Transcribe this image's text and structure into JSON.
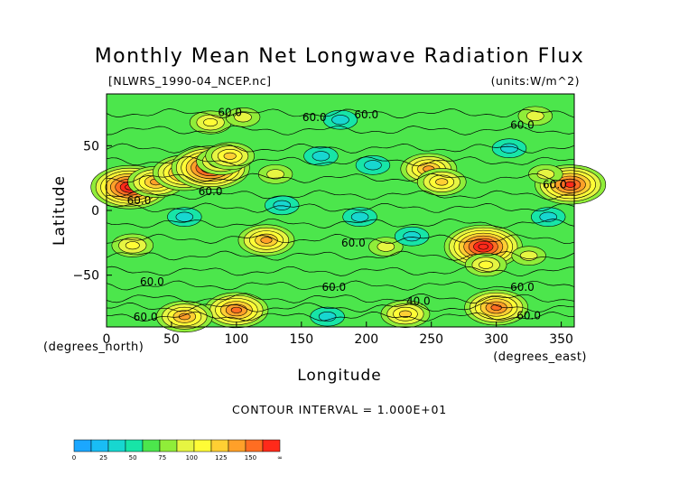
{
  "chart_data": {
    "type": "heatmap",
    "title": "Monthly Mean Net Longwave Radiation Flux",
    "source_file": "[NLWRS_1990-04_NCEP.nc]",
    "units_label": "(units:W/m^2)",
    "xlabel": "Longitude",
    "ylabel": "Latitude",
    "x_unit_label": "(degrees_east)",
    "y_unit_label": "(degrees_north)",
    "xlim": [
      0,
      360
    ],
    "ylim": [
      -90,
      90
    ],
    "x_ticks": [
      0,
      50,
      100,
      150,
      200,
      250,
      300,
      350
    ],
    "y_ticks": [
      50,
      0,
      -50
    ],
    "x_tick_labels": [
      "0",
      "50",
      "100",
      "150",
      "200",
      "250",
      "300",
      "350"
    ],
    "y_tick_labels": [
      "50",
      "0",
      "−50"
    ],
    "contour_interval_text": "CONTOUR INTERVAL = 1.000E+01",
    "contour_labels": [
      "60.0",
      "60.0",
      "60.0",
      "60.0",
      "60.0",
      "60.0",
      "60.0",
      "60.0",
      "60.0",
      "60.0",
      "60.0",
      "60.0",
      "60.0",
      "40.0"
    ],
    "colorbar": {
      "tick_labels": [
        "0",
        "25",
        "50",
        "75",
        "100",
        "125",
        "150",
        "∞"
      ],
      "bins": [
        0,
        12.5,
        25,
        37.5,
        50,
        62.5,
        75,
        87.5,
        100,
        112.5,
        125,
        137.5,
        150
      ],
      "colors": [
        "#1ba7ff",
        "#19bdf5",
        "#17d7d0",
        "#17e5a7",
        "#4ce64c",
        "#90ed39",
        "#e6f542",
        "#fffc36",
        "#ffcf33",
        "#ffa029",
        "#ff6d22",
        "#ff2a1a"
      ]
    },
    "field_background_mean": 55,
    "features": [
      {
        "lon": 18,
        "lat": 18,
        "value": 150
      },
      {
        "lon": 38,
        "lat": 22,
        "value": 120
      },
      {
        "lon": 60,
        "lat": 29,
        "value": 135
      },
      {
        "lon": 80,
        "lat": 33,
        "value": 150
      },
      {
        "lon": 88,
        "lat": 38,
        "value": 110
      },
      {
        "lon": 95,
        "lat": 42,
        "value": 100
      },
      {
        "lon": 130,
        "lat": 28,
        "value": 75
      },
      {
        "lon": 357,
        "lat": 20,
        "value": 140
      },
      {
        "lon": 338,
        "lat": 28,
        "value": 85
      },
      {
        "lon": 248,
        "lat": 32,
        "value": 120
      },
      {
        "lon": 258,
        "lat": 22,
        "value": 100
      },
      {
        "lon": 123,
        "lat": -23,
        "value": 120
      },
      {
        "lon": 20,
        "lat": -27,
        "value": 95
      },
      {
        "lon": 290,
        "lat": -28,
        "value": 150
      },
      {
        "lon": 292,
        "lat": -42,
        "value": 95
      },
      {
        "lon": 215,
        "lat": -28,
        "value": 75
      },
      {
        "lon": 325,
        "lat": -35,
        "value": 80
      },
      {
        "lon": 165,
        "lat": 42,
        "value": 25
      },
      {
        "lon": 205,
        "lat": 35,
        "value": 30
      },
      {
        "lon": 310,
        "lat": 48,
        "value": 30
      },
      {
        "lon": 195,
        "lat": -5,
        "value": 30
      },
      {
        "lon": 135,
        "lat": 4,
        "value": 28
      },
      {
        "lon": 340,
        "lat": -5,
        "value": 30
      },
      {
        "lon": 60,
        "lat": -5,
        "value": 35
      },
      {
        "lon": 235,
        "lat": -20,
        "value": 35
      },
      {
        "lon": 180,
        "lat": 70,
        "value": 30
      },
      {
        "lon": 80,
        "lat": 68,
        "value": 90
      },
      {
        "lon": 105,
        "lat": 72,
        "value": 75
      },
      {
        "lon": 330,
        "lat": 73,
        "value": 85
      },
      {
        "lon": 100,
        "lat": -77,
        "value": 130
      },
      {
        "lon": 60,
        "lat": -82,
        "value": 120
      },
      {
        "lon": 230,
        "lat": -80,
        "value": 110
      },
      {
        "lon": 300,
        "lat": -75,
        "value": 130
      },
      {
        "lon": 170,
        "lat": -82,
        "value": 30
      }
    ]
  }
}
